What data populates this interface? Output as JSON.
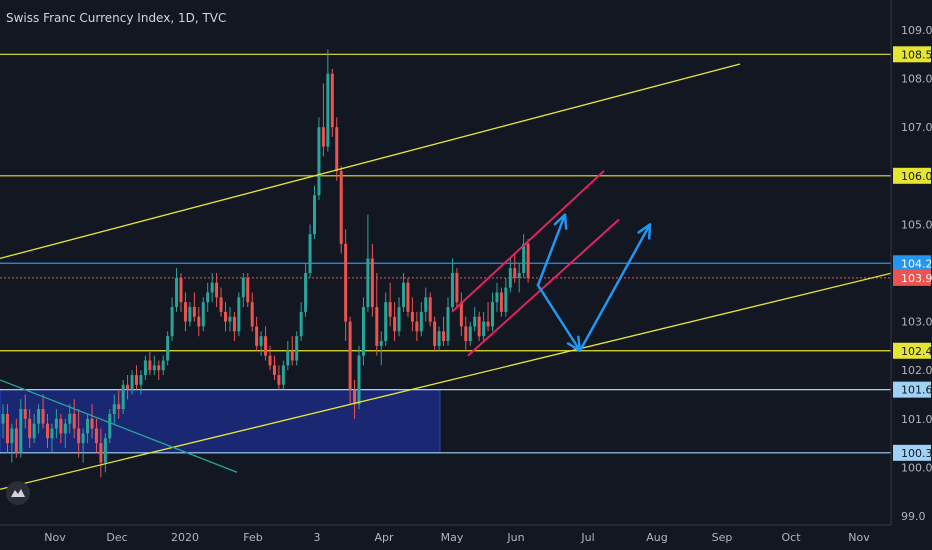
{
  "header": {
    "title": "Swiss Franc Currency Index, 1D, TVC"
  },
  "colors": {
    "background": "#131722",
    "up": "#26a69a",
    "down": "#ef5350",
    "yellow": "#e6e632",
    "blue_line": "#2196f3",
    "light_blue_line": "#9fd3f5",
    "crimson": "#e0245e",
    "arrow": "#2196f3",
    "box_fill": "#1e2f8f"
  },
  "icons": {
    "logo": "tradingview-logo-icon"
  },
  "chart_data": {
    "type": "candlestick",
    "title": "Swiss Franc Currency Index, 1D, TVC",
    "ylim": [
      98.9,
      109.4
    ],
    "x_ticks": [
      "Nov",
      "Dec",
      "2020",
      "Feb",
      "3",
      "Apr",
      "May",
      "Jun",
      "Jul",
      "Aug",
      "Sep",
      "Oct",
      "Nov"
    ],
    "y_ticks": [
      "109.0",
      "108.0",
      "107.0",
      "105.0",
      "103.0",
      "102.0",
      "101.0",
      "100.0",
      "99.0"
    ],
    "y_tick_values": [
      109,
      108,
      107,
      105,
      103,
      102,
      101,
      100,
      99
    ],
    "price_labels": [
      {
        "text": "108.5",
        "value": 108.5,
        "style": "yellow"
      },
      {
        "text": "106.0",
        "value": 106.0,
        "style": "yellow"
      },
      {
        "text": "104.2",
        "value": 104.2,
        "style": "blue"
      },
      {
        "text": "103.9",
        "value": 103.9,
        "style": "red"
      },
      {
        "text": "102.4",
        "value": 102.4,
        "style": "yellow"
      },
      {
        "text": "101.6",
        "value": 101.6,
        "style": "lightblue"
      },
      {
        "text": "100.3",
        "value": 100.3,
        "style": "lightblue"
      }
    ],
    "candles": [
      [
        0,
        100.9,
        101.3,
        100.6,
        101.1
      ],
      [
        1,
        101.1,
        101.3,
        100.3,
        100.5
      ],
      [
        2,
        100.5,
        100.9,
        100.1,
        100.8
      ],
      [
        3,
        100.8,
        101.0,
        100.2,
        100.3
      ],
      [
        4,
        100.3,
        101.4,
        100.2,
        101.2
      ],
      [
        5,
        101.2,
        101.5,
        100.8,
        101.0
      ],
      [
        6,
        101.0,
        101.2,
        100.4,
        100.6
      ],
      [
        7,
        100.6,
        101.1,
        100.5,
        100.9
      ],
      [
        8,
        100.9,
        101.3,
        100.7,
        101.2
      ],
      [
        9,
        101.2,
        101.5,
        100.8,
        100.9
      ],
      [
        10,
        100.9,
        101.1,
        100.4,
        100.6
      ],
      [
        11,
        100.6,
        100.9,
        100.3,
        100.8
      ],
      [
        12,
        100.8,
        101.2,
        100.6,
        101.0
      ],
      [
        13,
        101.0,
        101.1,
        100.5,
        100.7
      ],
      [
        14,
        100.7,
        101.0,
        100.4,
        100.9
      ],
      [
        15,
        100.9,
        101.3,
        100.7,
        101.1
      ],
      [
        16,
        101.1,
        101.4,
        100.6,
        100.8
      ],
      [
        17,
        100.8,
        101.2,
        100.2,
        100.5
      ],
      [
        18,
        100.5,
        100.8,
        100.1,
        100.7
      ],
      [
        19,
        100.7,
        101.1,
        100.5,
        101.0
      ],
      [
        20,
        101.0,
        101.3,
        100.6,
        100.8
      ],
      [
        21,
        100.8,
        101.0,
        100.3,
        100.5
      ],
      [
        22,
        100.5,
        100.8,
        99.8,
        100.1
      ],
      [
        23,
        100.1,
        100.7,
        99.9,
        100.6
      ],
      [
        24,
        100.6,
        101.2,
        100.5,
        101.1
      ],
      [
        25,
        101.1,
        101.5,
        100.9,
        101.3
      ],
      [
        26,
        101.3,
        101.6,
        101.0,
        101.2
      ],
      [
        27,
        101.2,
        101.8,
        101.1,
        101.7
      ],
      [
        28,
        101.7,
        101.9,
        101.4,
        101.6
      ],
      [
        29,
        101.6,
        102.0,
        101.5,
        101.9
      ],
      [
        30,
        101.9,
        102.1,
        101.6,
        101.7
      ],
      [
        31,
        101.7,
        102.0,
        101.5,
        101.9
      ],
      [
        32,
        101.9,
        102.3,
        101.8,
        102.2
      ],
      [
        33,
        102.2,
        102.4,
        101.9,
        102.0
      ],
      [
        34,
        102.0,
        102.3,
        101.9,
        102.1
      ],
      [
        35,
        102.1,
        102.2,
        101.8,
        102.0
      ],
      [
        36,
        102.0,
        102.3,
        101.9,
        102.2
      ],
      [
        37,
        102.2,
        102.8,
        102.1,
        102.7
      ],
      [
        38,
        102.7,
        103.5,
        102.6,
        103.3
      ],
      [
        39,
        103.3,
        104.1,
        103.2,
        103.9
      ],
      [
        40,
        103.9,
        104.0,
        103.2,
        103.4
      ],
      [
        41,
        103.4,
        103.6,
        102.8,
        103.0
      ],
      [
        42,
        103.0,
        103.4,
        102.9,
        103.3
      ],
      [
        43,
        103.3,
        103.6,
        103.0,
        103.1
      ],
      [
        44,
        103.1,
        103.3,
        102.7,
        102.9
      ],
      [
        45,
        102.9,
        103.5,
        102.8,
        103.4
      ],
      [
        46,
        103.4,
        103.8,
        103.2,
        103.6
      ],
      [
        47,
        103.6,
        104.0,
        103.4,
        103.8
      ],
      [
        48,
        103.8,
        104.0,
        103.3,
        103.5
      ],
      [
        49,
        103.5,
        103.7,
        103.1,
        103.2
      ],
      [
        50,
        103.2,
        103.4,
        102.8,
        103.0
      ],
      [
        51,
        103.0,
        103.3,
        102.8,
        103.1
      ],
      [
        52,
        103.1,
        103.2,
        102.6,
        102.8
      ],
      [
        53,
        102.8,
        103.6,
        102.7,
        103.5
      ],
      [
        54,
        103.5,
        104.0,
        103.3,
        103.9
      ],
      [
        55,
        103.9,
        104.0,
        103.3,
        103.4
      ],
      [
        56,
        103.4,
        103.6,
        102.8,
        102.9
      ],
      [
        57,
        102.9,
        103.1,
        102.4,
        102.5
      ],
      [
        58,
        102.5,
        102.8,
        102.3,
        102.7
      ],
      [
        59,
        102.7,
        102.9,
        102.2,
        102.3
      ],
      [
        60,
        102.3,
        102.5,
        102.0,
        102.1
      ],
      [
        61,
        102.1,
        102.3,
        101.8,
        101.9
      ],
      [
        62,
        101.9,
        102.1,
        101.6,
        101.7
      ],
      [
        63,
        101.7,
        102.2,
        101.6,
        102.1
      ],
      [
        64,
        102.1,
        102.6,
        102.0,
        102.4
      ],
      [
        65,
        102.4,
        102.7,
        102.1,
        102.2
      ],
      [
        66,
        102.2,
        102.8,
        102.1,
        102.7
      ],
      [
        67,
        102.7,
        103.4,
        102.6,
        103.2
      ],
      [
        68,
        103.2,
        104.2,
        103.1,
        104.0
      ],
      [
        69,
        104.0,
        105.0,
        103.9,
        104.8
      ],
      [
        70,
        104.8,
        105.8,
        104.7,
        105.6
      ],
      [
        71,
        105.6,
        107.2,
        105.5,
        107.0
      ],
      [
        72,
        107.0,
        107.9,
        106.4,
        106.6
      ],
      [
        73,
        106.6,
        108.6,
        106.5,
        108.1
      ],
      [
        74,
        108.1,
        108.2,
        106.8,
        107.0
      ],
      [
        75,
        107.0,
        107.2,
        105.9,
        106.1
      ],
      [
        76,
        106.1,
        106.2,
        104.4,
        104.6
      ],
      [
        77,
        104.6,
        104.9,
        102.6,
        103.0
      ],
      [
        78,
        103.0,
        103.1,
        101.3,
        101.6
      ],
      [
        79,
        101.6,
        101.8,
        101.0,
        101.3
      ],
      [
        80,
        101.3,
        102.5,
        101.2,
        102.3
      ],
      [
        81,
        102.3,
        103.5,
        102.1,
        103.3
      ],
      [
        82,
        103.3,
        105.2,
        103.2,
        104.3
      ],
      [
        83,
        104.3,
        104.6,
        103.1,
        103.3
      ],
      [
        84,
        103.3,
        104.0,
        102.3,
        102.5
      ],
      [
        85,
        102.5,
        102.8,
        102.1,
        102.6
      ],
      [
        86,
        102.6,
        103.6,
        102.5,
        103.4
      ],
      [
        87,
        103.4,
        103.8,
        102.9,
        103.1
      ],
      [
        88,
        103.1,
        103.4,
        102.6,
        102.8
      ],
      [
        89,
        102.8,
        103.5,
        102.7,
        103.3
      ],
      [
        90,
        103.3,
        104.0,
        103.2,
        103.8
      ],
      [
        91,
        103.8,
        103.9,
        103.1,
        103.2
      ],
      [
        92,
        103.2,
        103.5,
        102.8,
        103.0
      ],
      [
        93,
        103.0,
        103.2,
        102.6,
        102.8
      ],
      [
        94,
        102.8,
        103.4,
        102.7,
        103.2
      ],
      [
        95,
        103.2,
        103.7,
        103.0,
        103.5
      ],
      [
        96,
        103.5,
        103.6,
        102.9,
        103.0
      ],
      [
        97,
        103.0,
        103.1,
        102.4,
        102.5
      ],
      [
        98,
        102.5,
        102.9,
        102.4,
        102.8
      ],
      [
        99,
        102.8,
        103.1,
        102.5,
        102.6
      ],
      [
        100,
        102.6,
        103.5,
        102.5,
        103.3
      ],
      [
        101,
        103.3,
        104.3,
        103.2,
        104.0
      ],
      [
        102,
        104.0,
        104.1,
        103.3,
        103.4
      ],
      [
        103,
        103.4,
        103.6,
        102.7,
        102.9
      ],
      [
        104,
        102.9,
        103.1,
        102.4,
        102.6
      ],
      [
        105,
        102.6,
        103.0,
        102.5,
        102.9
      ],
      [
        106,
        102.9,
        103.3,
        102.8,
        103.1
      ],
      [
        107,
        103.1,
        103.2,
        102.6,
        102.7
      ],
      [
        108,
        102.7,
        103.2,
        102.6,
        103.0
      ],
      [
        109,
        103.0,
        103.4,
        102.8,
        102.9
      ],
      [
        110,
        102.9,
        103.6,
        102.8,
        103.4
      ],
      [
        111,
        103.4,
        103.8,
        103.2,
        103.6
      ],
      [
        112,
        103.6,
        103.7,
        103.1,
        103.2
      ],
      [
        113,
        103.2,
        103.9,
        103.1,
        103.7
      ],
      [
        114,
        103.7,
        104.3,
        103.6,
        104.1
      ],
      [
        115,
        104.1,
        104.4,
        103.8,
        103.9
      ],
      [
        116,
        103.9,
        104.2,
        103.6,
        104.0
      ],
      [
        117,
        104.0,
        104.8,
        103.9,
        104.6
      ],
      [
        118,
        104.6,
        104.7,
        103.8,
        103.9
      ]
    ],
    "x_start": 3,
    "x_step": 4.45,
    "candle_width": 3,
    "trend_lines": [
      {
        "name": "upper-yellow-channel",
        "color": "yellow",
        "points": [
          [
            0,
            104.3
          ],
          [
            740,
            108.3
          ]
        ]
      },
      {
        "name": "lower-yellow-channel",
        "color": "yellow",
        "points": [
          [
            0,
            99.55
          ],
          [
            892,
            104.0
          ]
        ]
      },
      {
        "name": "teal-diagonal",
        "color": "teal",
        "points": [
          [
            0,
            101.8
          ],
          [
            237,
            99.9
          ]
        ]
      },
      {
        "name": "crimson-upper",
        "color": "crimson",
        "points": [
          [
            452,
            103.2
          ],
          [
            604,
            106.1
          ]
        ]
      },
      {
        "name": "crimson-lower",
        "color": "crimson",
        "points": [
          [
            468,
            102.3
          ],
          [
            619,
            105.1
          ]
        ]
      }
    ],
    "horizontal_lines": [
      {
        "value": 108.5,
        "color": "yellow"
      },
      {
        "value": 106.0,
        "color": "yellow"
      },
      {
        "value": 104.2,
        "color": "blue"
      },
      {
        "value": 103.9,
        "color": "red-dotted"
      },
      {
        "value": 102.4,
        "color": "yellow"
      },
      {
        "value": 101.6,
        "color": "lightblue"
      },
      {
        "value": 100.3,
        "color": "lightblue"
      }
    ],
    "support_box": {
      "y_top": 101.6,
      "y_bottom": 100.3
    },
    "projection_arrows": [
      {
        "from": [
          538,
          103.75
        ],
        "to": [
          565,
          105.2
        ]
      },
      {
        "from": [
          538,
          103.75
        ],
        "to": [
          580,
          102.4
        ]
      },
      {
        "from": [
          580,
          102.4
        ],
        "to": [
          650,
          105.0
        ]
      }
    ]
  }
}
